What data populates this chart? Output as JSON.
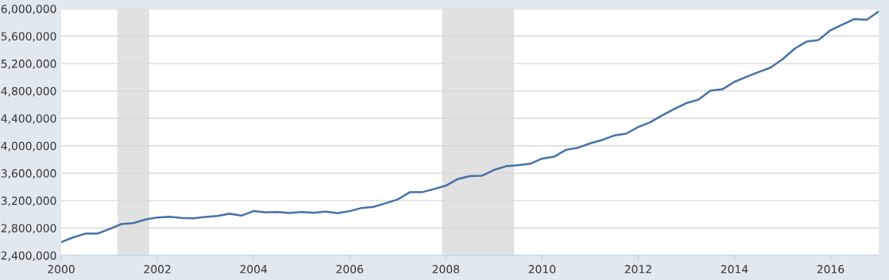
{
  "chart_data": {
    "type": "line",
    "x": [
      2000.0,
      2000.25,
      2000.5,
      2000.75,
      2001.0,
      2001.25,
      2001.5,
      2001.75,
      2002.0,
      2002.25,
      2002.5,
      2002.75,
      2003.0,
      2003.25,
      2003.5,
      2003.75,
      2004.0,
      2004.25,
      2004.5,
      2004.75,
      2005.0,
      2005.25,
      2005.5,
      2005.75,
      2006.0,
      2006.25,
      2006.5,
      2006.75,
      2007.0,
      2007.25,
      2007.5,
      2007.75,
      2008.0,
      2008.25,
      2008.5,
      2008.75,
      2009.0,
      2009.25,
      2009.5,
      2009.75,
      2010.0,
      2010.25,
      2010.5,
      2010.75,
      2011.0,
      2011.25,
      2011.5,
      2011.75,
      2012.0,
      2012.25,
      2012.5,
      2012.75,
      2013.0,
      2013.25,
      2013.5,
      2013.75,
      2014.0,
      2014.25,
      2014.5,
      2014.75,
      2015.0,
      2015.25,
      2015.5,
      2015.75,
      2016.0,
      2016.25,
      2016.5,
      2016.75,
      2017.0
    ],
    "series": [
      {
        "color": "#4572a7",
        "values": [
          2594000,
          2663000,
          2717000,
          2717000,
          2783000,
          2857000,
          2872000,
          2923000,
          2954000,
          2965000,
          2946000,
          2942000,
          2961000,
          2977000,
          3008000,
          2981000,
          3047000,
          3027000,
          3035000,
          3020000,
          3033000,
          3023000,
          3039000,
          3016000,
          3047000,
          3093000,
          3109000,
          3163000,
          3217000,
          3322000,
          3322000,
          3368000,
          3418000,
          3515000,
          3558000,
          3562000,
          3647000,
          3701000,
          3717000,
          3736000,
          3813000,
          3840000,
          3941000,
          3972000,
          4035000,
          4084000,
          4150000,
          4177000,
          4274000,
          4344000,
          4444000,
          4537000,
          4622000,
          4673000,
          4805000,
          4824000,
          4932000,
          5006000,
          5076000,
          5141000,
          5262000,
          5416000,
          5521000,
          5544000,
          5687000,
          5769000,
          5850000,
          5839000,
          5959000
        ]
      }
    ],
    "xlim": [
      2000,
      2017
    ],
    "xticks": [
      2000,
      2002,
      2004,
      2006,
      2008,
      2010,
      2012,
      2014,
      2016
    ],
    "ylim": [
      2400000,
      6000000
    ],
    "yticks": [
      {
        "value": 2400000,
        "label": "2,400,000"
      },
      {
        "value": 2800000,
        "label": "2,800,000"
      },
      {
        "value": 3200000,
        "label": "3,200,000"
      },
      {
        "value": 3600000,
        "label": "3,600,000"
      },
      {
        "value": 4000000,
        "label": "4,000,000"
      },
      {
        "value": 4400000,
        "label": "4,400,000"
      },
      {
        "value": 4800000,
        "label": "4,800,000"
      },
      {
        "value": 5200000,
        "label": "5,200,000"
      },
      {
        "value": 5600000,
        "label": "5,600,000"
      },
      {
        "value": 6000000,
        "label": "6,000,000"
      }
    ],
    "bands": [
      {
        "axis": "x",
        "from": 2001.17,
        "to": 2001.83,
        "color": "#e1e1e1"
      },
      {
        "axis": "x",
        "from": 2007.92,
        "to": 2009.42,
        "color": "#e1e1e1"
      }
    ],
    "grid": "y",
    "legend": false,
    "marker": "none",
    "line_style": "solid"
  }
}
